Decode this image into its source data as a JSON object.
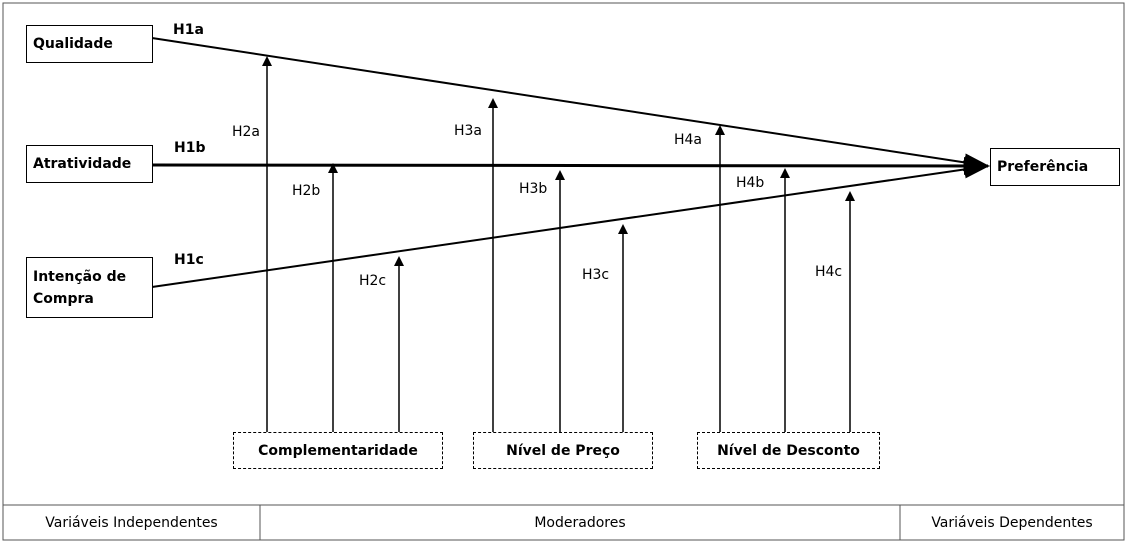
{
  "nodes": {
    "independent": [
      "Qualidade",
      "Atratividade",
      "Intenção de Compra"
    ],
    "dependent": "Preferência",
    "moderators": [
      "Complementaridade",
      "Nível de Preço",
      "Nível de Desconto"
    ]
  },
  "hypotheses": {
    "direct": [
      "H1a",
      "H1b",
      "H1c"
    ],
    "moderation": [
      "H2a",
      "H2b",
      "H2c",
      "H3a",
      "H3b",
      "H3c",
      "H4a",
      "H4b",
      "H4c"
    ]
  },
  "footer": [
    "Variáveis Independentes",
    "Moderadores",
    "Variáveis Dependentes"
  ]
}
